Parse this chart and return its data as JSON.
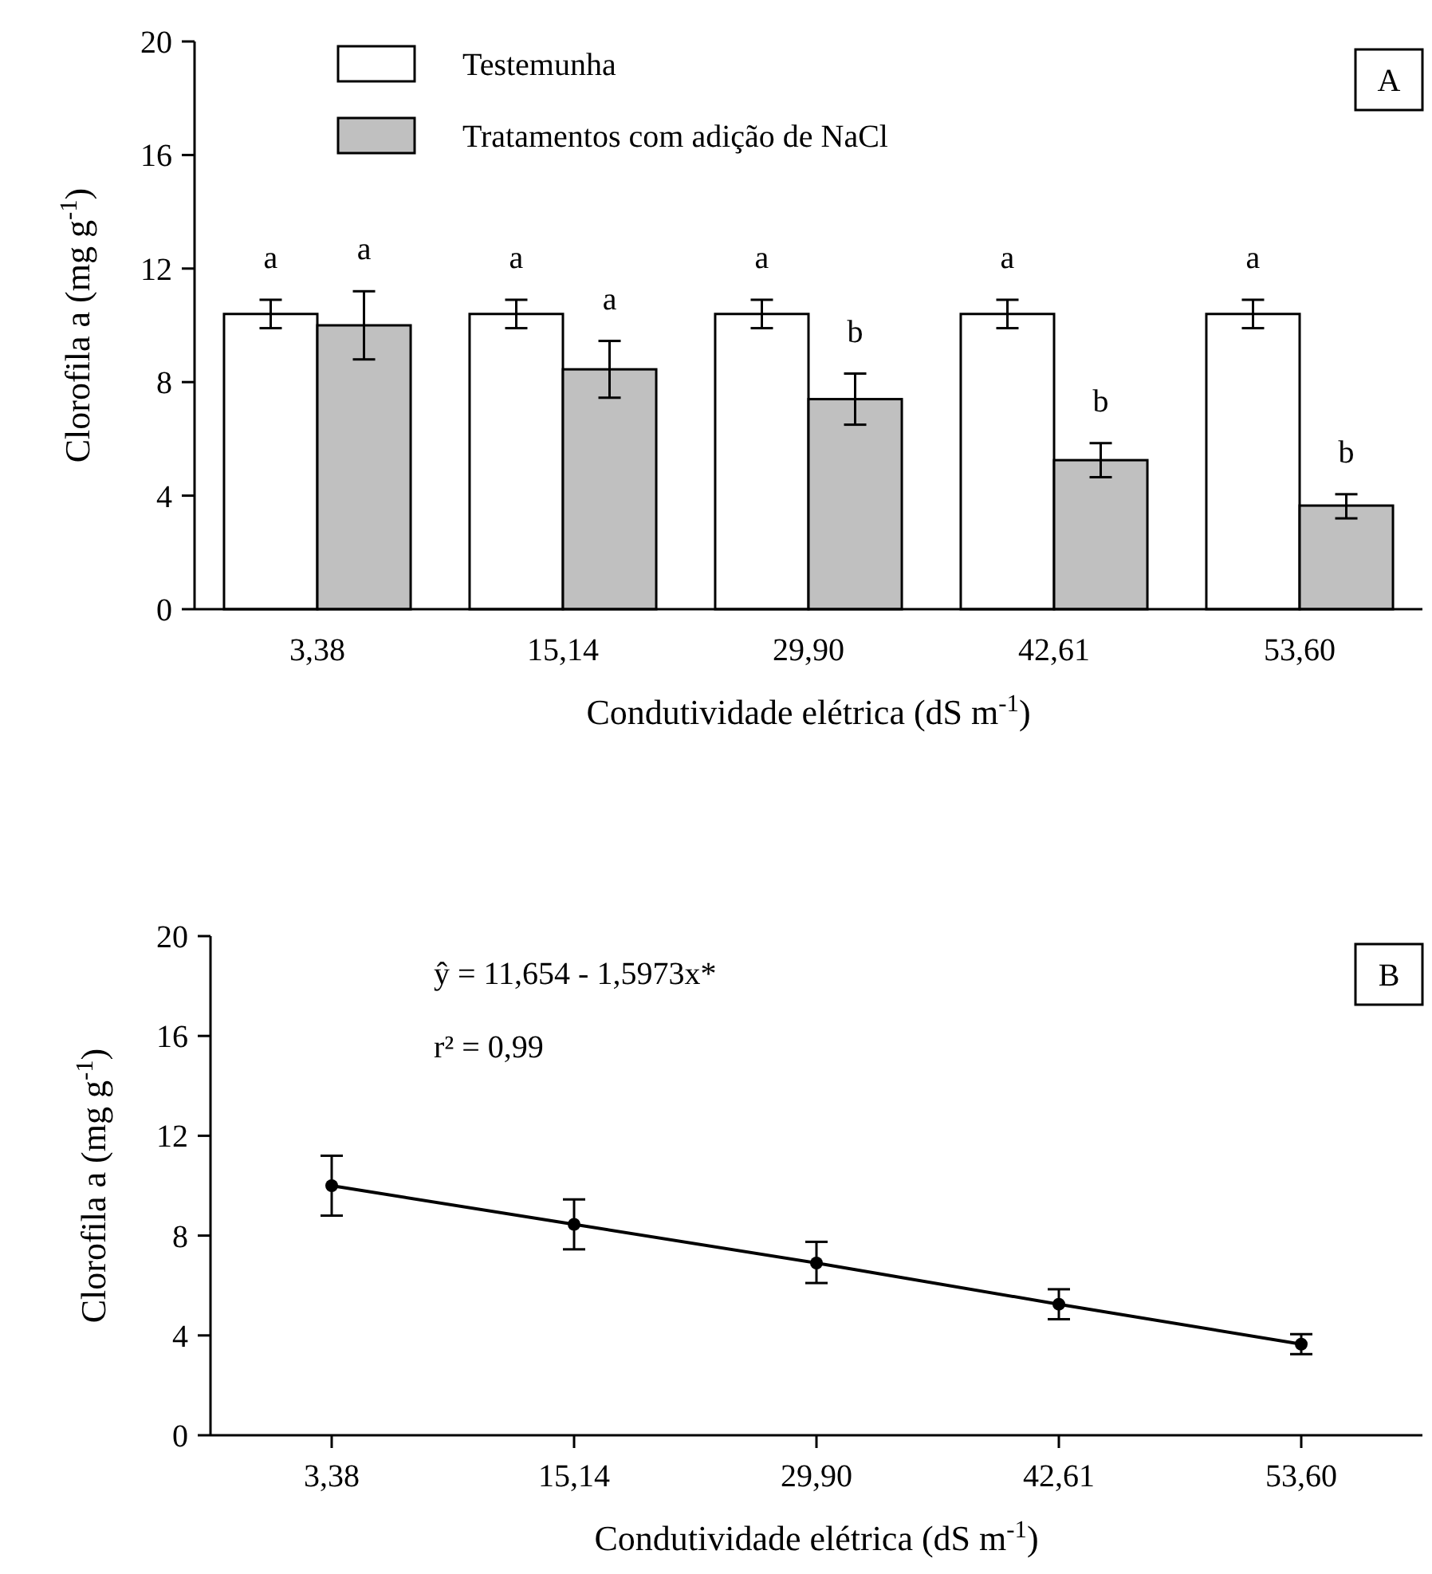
{
  "chart_data": [
    {
      "type": "bar",
      "categories": [
        "3,38",
        "15,14",
        "29,90",
        "42,61",
        "53,60"
      ],
      "series": [
        {
          "name": "Testemunha",
          "color": "#ffffff",
          "values": [
            10.4,
            10.4,
            10.4,
            10.4,
            10.4
          ],
          "errors": [
            0.5,
            0.5,
            0.5,
            0.5,
            0.5
          ]
        },
        {
          "name": "Tratamentos com adição de NaCl",
          "color": "#c0c0c0",
          "values": [
            10.0,
            8.45,
            7.4,
            5.25,
            3.65
          ],
          "errors": [
            [
              8.8,
              11.2
            ],
            [
              7.45,
              9.45
            ],
            [
              6.5,
              8.3
            ],
            [
              4.65,
              5.85
            ],
            [
              3.2,
              4.05
            ]
          ]
        }
      ],
      "ylim": [
        0,
        20
      ],
      "yticks": [
        0,
        4,
        8,
        12,
        16,
        20
      ],
      "ylabel": "Clorofila a (mg g$^{-1}$)",
      "xlabel": "Condutividade elétrica (dS m$^{-1}$)",
      "legend": "top left",
      "grid": false,
      "annotations": [
        "a",
        "a",
        "a",
        "a",
        "a",
        "b",
        "a",
        "b",
        "a",
        "b",
        "A"
      ]
    },
    {
      "type": "scatter",
      "categories": [
        "3,38",
        "15,14",
        "29,90",
        "42,61",
        "53,60"
      ],
      "series": [
        {
          "type": "scatter",
          "marker": "circle",
          "color": "#000000",
          "values": [
            10.0,
            8.45,
            6.9,
            5.25,
            3.65
          ],
          "errors": [
            [
              8.8,
              11.2
            ],
            [
              7.45,
              9.45
            ],
            [
              6.1,
              7.75
            ],
            [
              4.65,
              5.85
            ],
            [
              3.25,
              4.05
            ]
          ]
        },
        {
          "type": "line",
          "color": "#000000",
          "values": [
            10.0,
            8.45,
            6.9,
            5.25,
            3.65
          ]
        }
      ],
      "ylim": [
        0,
        20
      ],
      "yticks": [
        0,
        4,
        8,
        12,
        16,
        20
      ],
      "ylabel": "Clorofila a (mg g$^{-1}$)",
      "xlabel": "Condutividade elétrica (dS m$^{-1}$)",
      "line_style": "solid",
      "grid": false,
      "annotations": [
        "ŷ = 11,654 - 1,5973x*",
        "r² = 0,99",
        "B"
      ]
    }
  ]
}
